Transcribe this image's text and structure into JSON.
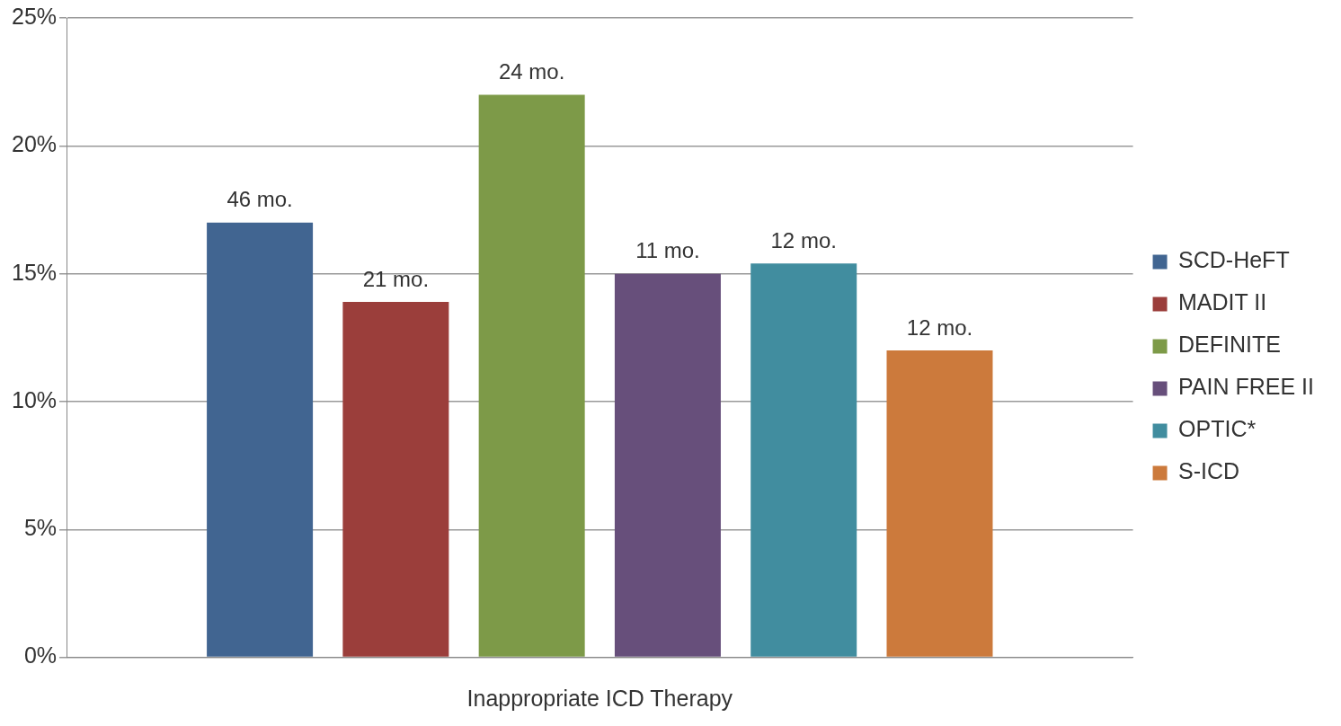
{
  "chart_data": {
    "type": "bar",
    "xlabel": "Inappropriate ICD Therapy",
    "categories": [
      null
    ],
    "series": [
      {
        "name": "SCD-HeFT",
        "color": "#416591",
        "values": [
          17.0
        ]
      },
      {
        "name": "MADIT II",
        "color": "#9b3e3b",
        "values": [
          13.9
        ]
      },
      {
        "name": "DEFINITE",
        "color": "#7d9a48",
        "values": [
          22.0
        ]
      },
      {
        "name": "PAIN FREE II",
        "color": "#674f7b",
        "values": [
          15.0
        ]
      },
      {
        "name": "OPTIC*",
        "color": "#418d9f",
        "values": [
          15.4
        ]
      },
      {
        "name": "S-ICD",
        "color": "#cc7a3c",
        "values": [
          12.0
        ]
      }
    ],
    "annotations": [
      {
        "text": "46 mo.",
        "y": 17.0
      },
      {
        "text": "21 mo.",
        "y": 13.9
      },
      {
        "text": "24 mo.",
        "y": 22.0
      },
      {
        "text": "11 mo.",
        "y": 15.0
      },
      {
        "text": "12 mo.",
        "y": 15.4
      },
      {
        "text": "12 mo.",
        "y": 12.0
      }
    ],
    "ylim": [
      0,
      25
    ],
    "yticks": [
      {
        "value": 0,
        "label": "0%"
      },
      {
        "value": 5,
        "label": "5%"
      },
      {
        "value": 10,
        "label": "10%"
      },
      {
        "value": 15,
        "label": "15%"
      },
      {
        "value": 20,
        "label": "20%"
      },
      {
        "value": 25,
        "label": "25%"
      }
    ],
    "grid": "y",
    "legend": "right"
  }
}
